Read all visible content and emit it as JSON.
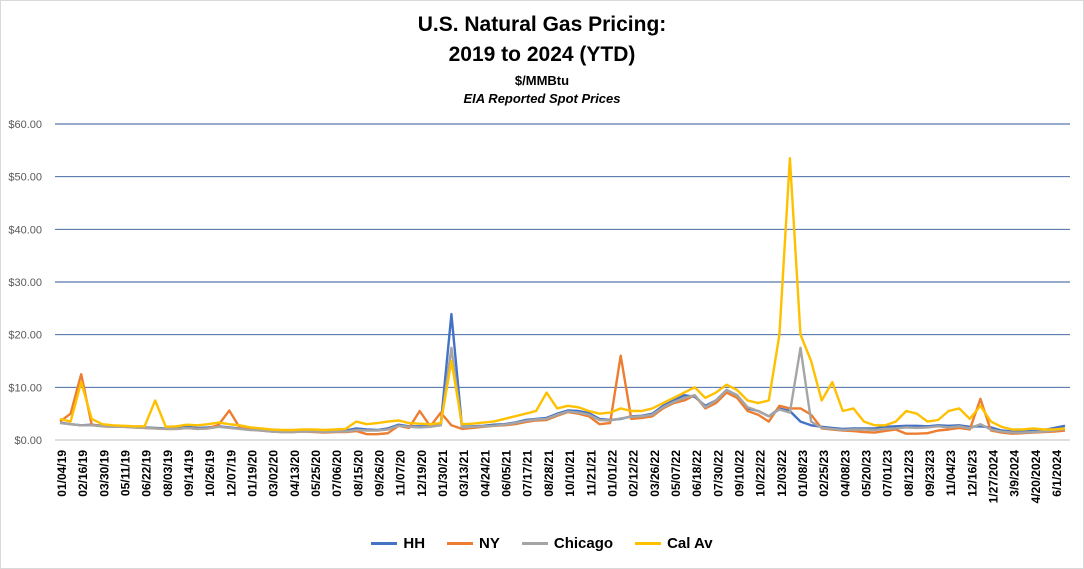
{
  "chart_data": {
    "type": "line",
    "title": "U.S. Natural Gas Pricing:",
    "title_line2": "2019 to 2024 (YTD)",
    "subtitle": "$/MMBtu",
    "subtitle2": "EIA Reported Spot Prices",
    "ylim": [
      0,
      60
    ],
    "yticks": [
      "$0.00",
      "$10.00",
      "$20.00",
      "$30.00",
      "$40.00",
      "$50.00",
      "$60.00"
    ],
    "grid": true,
    "legend_position": "bottom",
    "xticks": [
      "01/04/19",
      "02/16/19",
      "03/30/19",
      "05/11/19",
      "06/22/19",
      "08/03/19",
      "09/14/19",
      "10/26/19",
      "12/07/19",
      "01/19/20",
      "03/02/20",
      "04/13/20",
      "05/25/20",
      "07/06/20",
      "08/15/20",
      "09/26/20",
      "11/07/20",
      "12/19/20",
      "01/30/21",
      "03/13/21",
      "04/24/21",
      "06/05/21",
      "07/17/21",
      "08/28/21",
      "10/10/21",
      "11/21/21",
      "01/01/22",
      "02/12/22",
      "03/26/22",
      "05/07/22",
      "06/18/22",
      "07/30/22",
      "09/10/22",
      "10/22/22",
      "12/03/22",
      "01/08/23",
      "02/25/23",
      "04/08/23",
      "05/20/23",
      "07/01/23",
      "08/12/23",
      "09/23/23",
      "11/04/23",
      "12/16/23",
      "1/27/2024",
      "3/9/2024",
      "4/20/2024",
      "6/1/2024"
    ],
    "x": [
      "01/04/19",
      "01/25/19",
      "02/16/19",
      "03/09/19",
      "03/30/19",
      "04/20/19",
      "05/11/19",
      "06/01/19",
      "06/22/19",
      "07/13/19",
      "08/03/19",
      "08/24/19",
      "09/14/19",
      "10/05/19",
      "10/26/19",
      "11/16/19",
      "12/07/19",
      "12/28/19",
      "01/19/20",
      "02/09/20",
      "03/02/20",
      "03/23/20",
      "04/13/20",
      "05/04/20",
      "05/25/20",
      "06/15/20",
      "07/06/20",
      "07/26/20",
      "08/15/20",
      "09/05/20",
      "09/26/20",
      "10/17/20",
      "11/07/20",
      "11/28/20",
      "12/19/20",
      "01/09/21",
      "01/30/21",
      "02/20/21",
      "03/13/21",
      "04/03/21",
      "04/24/21",
      "05/15/21",
      "06/05/21",
      "06/26/21",
      "07/17/21",
      "08/07/21",
      "08/28/21",
      "09/19/21",
      "10/10/21",
      "10/31/21",
      "11/21/21",
      "12/11/21",
      "01/01/22",
      "01/22/22",
      "02/12/22",
      "03/05/22",
      "03/26/22",
      "04/16/22",
      "05/07/22",
      "05/28/22",
      "06/18/22",
      "07/09/22",
      "07/30/22",
      "08/20/22",
      "09/10/22",
      "10/01/22",
      "10/22/22",
      "11/12/22",
      "12/03/22",
      "12/20/22",
      "01/08/23",
      "01/29/23",
      "02/25/23",
      "03/18/23",
      "04/08/23",
      "04/29/23",
      "05/20/23",
      "06/10/23",
      "07/01/23",
      "07/22/23",
      "08/12/23",
      "09/02/23",
      "09/23/23",
      "10/14/23",
      "11/04/23",
      "11/25/23",
      "12/16/23",
      "01/06/24",
      "1/27/2024",
      "2/17/2024",
      "3/9/2024",
      "3/30/2024",
      "4/20/2024",
      "5/11/2024",
      "6/1/2024",
      "6/22/2024"
    ],
    "series": [
      {
        "name": "HH",
        "color": "#4472c4",
        "values": [
          3.3,
          3.0,
          2.8,
          2.9,
          2.7,
          2.6,
          2.6,
          2.5,
          2.4,
          2.3,
          2.2,
          2.2,
          2.5,
          2.3,
          2.4,
          2.6,
          2.4,
          2.2,
          2.0,
          1.9,
          1.8,
          1.7,
          1.7,
          1.8,
          1.7,
          1.6,
          1.7,
          1.8,
          2.2,
          2.0,
          1.9,
          2.2,
          2.9,
          2.6,
          2.6,
          2.6,
          3.0,
          23.9,
          2.5,
          2.6,
          2.7,
          2.9,
          3.0,
          3.3,
          3.8,
          4.0,
          4.2,
          5.0,
          5.6,
          5.5,
          5.1,
          4.0,
          3.8,
          4.0,
          4.5,
          4.6,
          5.0,
          6.5,
          7.5,
          8.5,
          8.2,
          6.5,
          7.5,
          9.5,
          8.5,
          6.0,
          5.5,
          4.5,
          6.0,
          5.5,
          3.5,
          2.8,
          2.5,
          2.3,
          2.1,
          2.2,
          2.2,
          2.2,
          2.5,
          2.6,
          2.7,
          2.7,
          2.6,
          2.8,
          2.7,
          2.8,
          2.5,
          2.6,
          2.4,
          1.8,
          1.6,
          1.6,
          1.7,
          1.9,
          2.3,
          2.7
        ]
      },
      {
        "name": "NY",
        "color": "#ed7d31",
        "values": [
          3.5,
          5.0,
          12.5,
          2.9,
          2.6,
          2.5,
          2.5,
          2.4,
          2.3,
          2.2,
          2.1,
          2.1,
          2.3,
          2.1,
          2.2,
          2.9,
          5.6,
          2.3,
          2.0,
          1.8,
          1.6,
          1.5,
          1.5,
          1.6,
          1.5,
          1.4,
          1.5,
          1.5,
          1.7,
          1.1,
          1.1,
          1.3,
          2.7,
          2.3,
          5.5,
          2.6,
          5.2,
          2.8,
          2.1,
          2.3,
          2.5,
          2.7,
          2.8,
          3.0,
          3.4,
          3.7,
          3.8,
          4.6,
          5.3,
          5.0,
          4.5,
          3.0,
          3.2,
          16.0,
          4.0,
          4.2,
          4.5,
          6.0,
          7.0,
          7.5,
          8.5,
          6.0,
          7.0,
          9.0,
          8.0,
          5.5,
          4.8,
          3.5,
          6.5,
          6.0,
          6.0,
          4.8,
          2.2,
          2.0,
          1.8,
          1.7,
          1.5,
          1.4,
          1.7,
          2.0,
          1.2,
          1.2,
          1.3,
          1.8,
          2.0,
          2.3,
          2.0,
          7.8,
          1.8,
          1.4,
          1.2,
          1.3,
          1.4,
          1.5,
          1.6,
          1.8
        ]
      },
      {
        "name": "Chicago",
        "color": "#a5a5a5",
        "values": [
          3.2,
          3.0,
          2.8,
          2.8,
          2.6,
          2.5,
          2.5,
          2.4,
          2.3,
          2.2,
          2.1,
          2.1,
          2.3,
          2.1,
          2.2,
          2.5,
          2.3,
          2.1,
          1.9,
          1.8,
          1.6,
          1.5,
          1.5,
          1.6,
          1.6,
          1.5,
          1.6,
          1.6,
          1.9,
          1.8,
          1.8,
          2.0,
          2.7,
          2.5,
          2.4,
          2.5,
          2.8,
          17.5,
          2.4,
          2.5,
          2.6,
          2.7,
          2.9,
          3.2,
          3.6,
          3.9,
          4.0,
          4.8,
          5.4,
          5.2,
          4.8,
          3.8,
          3.7,
          4.1,
          4.4,
          4.5,
          4.8,
          6.2,
          7.2,
          8.0,
          8.5,
          6.2,
          7.5,
          9.5,
          8.5,
          6.2,
          5.5,
          4.5,
          5.8,
          5.2,
          17.5,
          3.5,
          2.3,
          2.1,
          1.9,
          2.0,
          2.0,
          1.9,
          2.1,
          2.2,
          2.4,
          2.3,
          2.4,
          2.6,
          2.4,
          2.6,
          2.2,
          3.0,
          2.0,
          1.6,
          1.4,
          1.4,
          1.5,
          1.6,
          1.8,
          2.1
        ]
      },
      {
        "name": "Cal Av",
        "color": "#ffc000",
        "values": [
          4.0,
          3.5,
          11.0,
          4.0,
          3.0,
          2.8,
          2.7,
          2.6,
          2.6,
          7.5,
          2.5,
          2.6,
          2.9,
          2.8,
          3.0,
          3.3,
          3.0,
          2.8,
          2.4,
          2.2,
          2.0,
          1.9,
          1.9,
          2.0,
          2.0,
          1.9,
          2.0,
          2.1,
          3.5,
          3.0,
          3.2,
          3.5,
          3.7,
          3.2,
          3.1,
          3.0,
          3.2,
          15.0,
          3.0,
          3.1,
          3.3,
          3.5,
          4.0,
          4.5,
          5.0,
          5.5,
          9.0,
          6.0,
          6.5,
          6.2,
          5.5,
          5.0,
          5.2,
          6.0,
          5.5,
          5.5,
          6.0,
          7.0,
          8.0,
          9.0,
          10.0,
          8.0,
          9.0,
          10.5,
          9.5,
          7.5,
          7.0,
          7.5,
          20.0,
          53.5,
          20.0,
          15.0,
          7.5,
          11.0,
          5.5,
          6.0,
          3.5,
          2.8,
          2.8,
          3.5,
          5.5,
          5.0,
          3.5,
          3.8,
          5.5,
          6.0,
          4.0,
          6.5,
          3.5,
          2.5,
          2.0,
          2.0,
          2.2,
          2.0,
          2.0,
          2.2
        ]
      }
    ]
  }
}
